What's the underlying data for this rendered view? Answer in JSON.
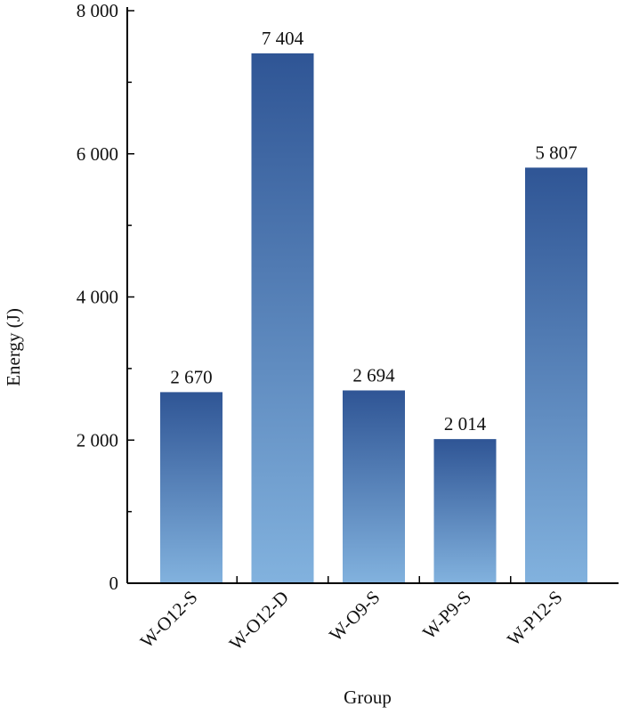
{
  "chart_data": {
    "type": "bar",
    "title": "",
    "xlabel": "Group",
    "ylabel": "Energy (J)",
    "categories": [
      "W-O12-S",
      "W-O12-D",
      "W-O9-S",
      "W-P9-S",
      "W-P12-S"
    ],
    "values": [
      2670,
      7404,
      2694,
      2014,
      5807
    ],
    "value_labels": [
      "2 670",
      "7 404",
      "2 694",
      "2 014",
      "5 807"
    ],
    "ylim": [
      0,
      8000
    ],
    "y_ticks": [
      0,
      2000,
      4000,
      6000,
      8000
    ],
    "y_tick_labels": [
      "0",
      "2 000",
      "4 000",
      "6 000",
      "8 000"
    ],
    "grid": false,
    "legend": "none",
    "colors": {
      "bar_top": "#2f5595",
      "bar_bottom": "#82b2de",
      "axis": "#000000"
    }
  }
}
